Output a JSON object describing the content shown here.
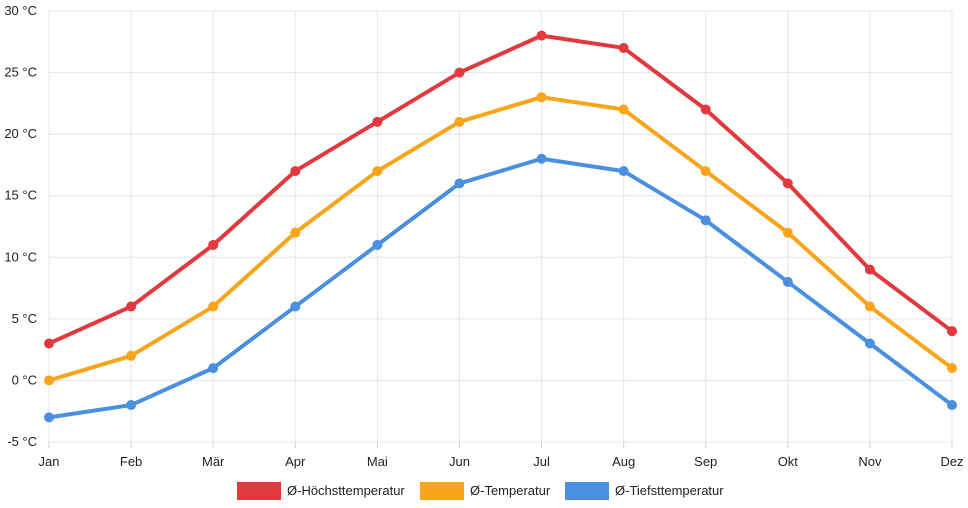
{
  "chart_data": {
    "type": "line",
    "title": "",
    "xlabel": "",
    "ylabel": "",
    "x": [
      "Jan",
      "Feb",
      "Mär",
      "Apr",
      "Mai",
      "Jun",
      "Jul",
      "Aug",
      "Sep",
      "Okt",
      "Nov",
      "Dez"
    ],
    "ylim": [
      -5,
      30
    ],
    "yticks": [
      -5,
      0,
      5,
      10,
      15,
      20,
      25,
      30
    ],
    "y_unit": "°C",
    "grid": true,
    "legend_position": "bottom",
    "series": [
      {
        "name": "Ø-Höchsttemperatur",
        "color": "#e2393f",
        "values": [
          3,
          6,
          11,
          17,
          21,
          25,
          28,
          27,
          22,
          16,
          9,
          4
        ]
      },
      {
        "name": "Ø-Temperatur",
        "color": "#f8a51b",
        "values": [
          0,
          2,
          6,
          12,
          17,
          21,
          23,
          22,
          17,
          12,
          6,
          1
        ]
      },
      {
        "name": "Ø-Tiefsttemperatur",
        "color": "#4a8fe0",
        "values": [
          -3,
          -2,
          1,
          6,
          11,
          16,
          18,
          17,
          13,
          8,
          3,
          -2
        ]
      }
    ]
  }
}
